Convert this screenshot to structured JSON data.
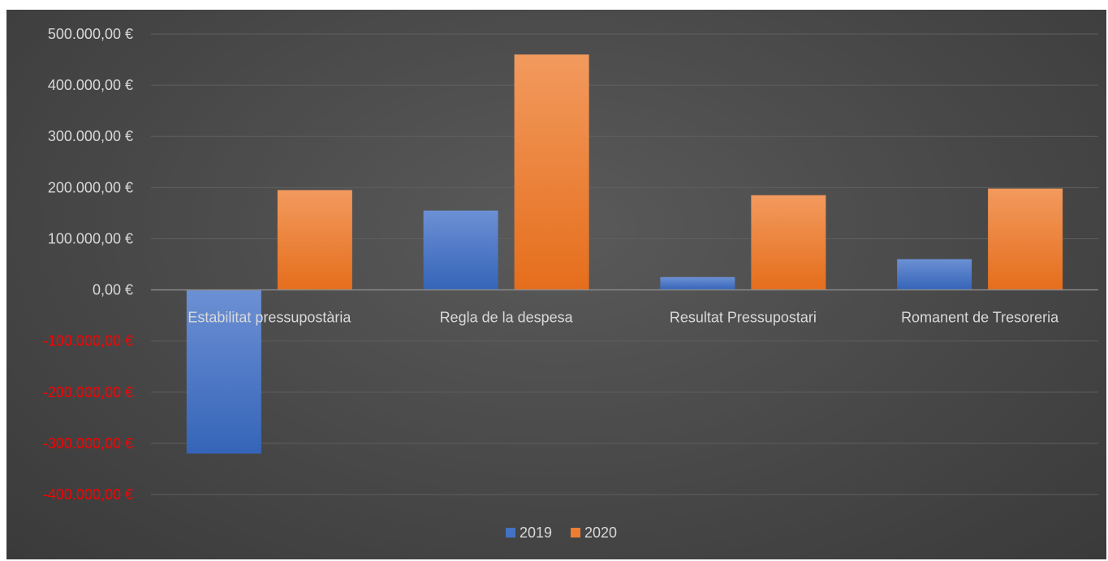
{
  "chart_data": {
    "type": "bar",
    "categories": [
      "Estabilitat pressupostària",
      "Regla de la despesa",
      "Resultat Pressupostari",
      "Romanent de Tresoreria"
    ],
    "series": [
      {
        "name": "2019",
        "values": [
          -320000,
          155000,
          25000,
          60000
        ],
        "color": "#4472c4"
      },
      {
        "name": "2020",
        "values": [
          195000,
          460000,
          185000,
          198000
        ],
        "color": "#ed7d31"
      }
    ],
    "y_ticks": [
      {
        "value": 500000,
        "label": "500.000,00 €"
      },
      {
        "value": 400000,
        "label": "400.000,00 €"
      },
      {
        "value": 300000,
        "label": "300.000,00 €"
      },
      {
        "value": 200000,
        "label": "200.000,00 €"
      },
      {
        "value": 100000,
        "label": "100.000,00 €"
      },
      {
        "value": 0,
        "label": "0,00 €"
      },
      {
        "value": -100000,
        "label": "-100.000,00 €"
      },
      {
        "value": -200000,
        "label": "-200.000,00 €"
      },
      {
        "value": -300000,
        "label": "-300.000,00 €"
      },
      {
        "value": -400000,
        "label": "-400.000,00 €"
      }
    ],
    "ylim": [
      -400000,
      500000
    ],
    "grid": true,
    "legend_position": "bottom",
    "colors": {
      "positive_tick": "#d9d9d9",
      "negative_tick": "#ff0000",
      "gridline": "#5f5f5f",
      "axis": "#8c8c8c"
    }
  }
}
